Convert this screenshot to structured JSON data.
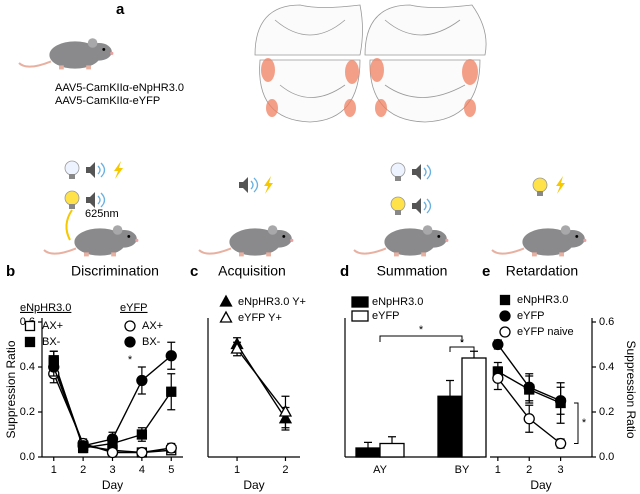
{
  "panel_a": {
    "label": "a",
    "constructs": [
      "AAV5-CamKIIα-eNpHR3.0",
      "AAV5-CamKIIα-eYFP"
    ],
    "wavelength": "625nm"
  },
  "chart_data": [
    {
      "type": "line",
      "label": "b",
      "title": "Discrimination",
      "x_label": "Day",
      "y_label": "Suppression Ratio",
      "x": [
        1,
        2,
        3,
        4,
        5
      ],
      "xlim": [
        0.6,
        5.4
      ],
      "xticks": [
        1,
        2,
        3,
        4,
        5
      ],
      "ylim": [
        0,
        0.6
      ],
      "yticks": [
        {
          "value": 0,
          "label": "0.0"
        },
        0.2,
        0.4,
        0.6
      ],
      "series_groups": [
        {
          "name": "eNpHR3.0",
          "series": [
            {
              "name": "AX+",
              "marker": "square",
              "color": "#000",
              "fill": "#fff",
              "values": [
                0.42,
                0.05,
                0.03,
                0.02,
                0.03
              ],
              "errors": [
                0.05,
                0.02,
                0.02,
                0.01,
                0.01
              ]
            },
            {
              "name": "BX-",
              "marker": "square",
              "color": "#000",
              "fill": "#000",
              "values": [
                0.43,
                0.04,
                0.06,
                0.1,
                0.29
              ],
              "errors": [
                0.04,
                0.02,
                0.03,
                0.03,
                0.08
              ]
            }
          ]
        },
        {
          "name": "eYFP",
          "series": [
            {
              "name": "AX+",
              "marker": "circle",
              "color": "#000",
              "fill": "#fff",
              "values": [
                0.37,
                0.06,
                0.02,
                0.02,
                0.04
              ],
              "errors": [
                0.04,
                0.02,
                0.02,
                0.01,
                0.02
              ]
            },
            {
              "name": "BX-",
              "marker": "circle",
              "color": "#000",
              "fill": "#000",
              "values": [
                0.4,
                0.05,
                0.08,
                0.34,
                0.45
              ],
              "errors": [
                0.04,
                0.02,
                0.03,
                0.06,
                0.06
              ]
            }
          ]
        }
      ],
      "annotations": [
        "*"
      ]
    },
    {
      "type": "line",
      "label": "c",
      "title": "Acquisition",
      "x_label": "Day",
      "x": [
        1,
        2
      ],
      "xlim": [
        0.4,
        2.3
      ],
      "xticks": [
        1,
        2
      ],
      "ylim": [
        0,
        0.6
      ],
      "series_groups": [
        {
          "series": [
            {
              "name": "eNpHR3.0  Y+",
              "marker": "triangle",
              "color": "#000",
              "fill": "#000",
              "values": [
                0.5,
                0.17
              ],
              "errors": [
                0.03,
                0.05
              ]
            },
            {
              "name": "eYFP  Y+",
              "marker": "triangle",
              "color": "#000",
              "fill": "#fff",
              "values": [
                0.48,
                0.2
              ],
              "errors": [
                0.03,
                0.07
              ]
            }
          ]
        }
      ]
    },
    {
      "type": "bar",
      "label": "d",
      "title": "Summation",
      "categories": [
        "AY",
        "BY"
      ],
      "ylim": [
        0,
        0.6
      ],
      "series": [
        {
          "name": "eNpHR3.0",
          "color": "#000",
          "values": [
            0.04,
            0.27
          ],
          "errors": [
            0.025,
            0.07
          ]
        },
        {
          "name": "eYFP",
          "color": "#fff",
          "values": [
            0.06,
            0.44
          ],
          "errors": [
            0.03,
            0.03
          ]
        }
      ],
      "annotations": [
        "*",
        "*"
      ]
    },
    {
      "type": "line",
      "label": "e",
      "title": "Retardation",
      "x_label": "Day",
      "y_label": "Suppression Ratio",
      "y_axis_side": "right",
      "x": [
        1,
        2,
        3
      ],
      "xlim": [
        0.75,
        4.0
      ],
      "xticks": [
        1,
        2,
        3
      ],
      "ylim": [
        0,
        0.6
      ],
      "yticks": [
        {
          "value": 0,
          "label": "0.0"
        },
        0.2,
        0.4,
        0.6
      ],
      "series_groups": [
        {
          "series": [
            {
              "name": "eNpHR3.0",
              "marker": "square",
              "color": "#000",
              "fill": "#000",
              "values": [
                0.38,
                0.3,
                0.24
              ],
              "errors": [
                0.04,
                0.06,
                0.09
              ]
            },
            {
              "name": "eYFP",
              "marker": "circle",
              "color": "#000",
              "fill": "#000",
              "values": [
                0.5,
                0.31,
                0.25
              ],
              "errors": [
                0.02,
                0.06,
                0.06
              ]
            },
            {
              "name": "eYFP naive",
              "marker": "circle",
              "color": "#000",
              "fill": "#fff",
              "values": [
                0.35,
                0.17,
                0.06
              ],
              "errors": [
                0.05,
                0.06,
                0.02
              ]
            }
          ]
        }
      ],
      "annotations": [
        "*"
      ]
    }
  ]
}
